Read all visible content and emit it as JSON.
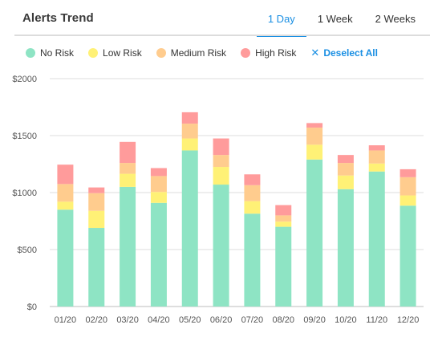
{
  "header": {
    "title": "Alerts Trend",
    "tabs": [
      {
        "label": "1 Day",
        "active": true
      },
      {
        "label": "1 Week",
        "active": false
      },
      {
        "label": "2 Weeks",
        "active": false
      }
    ]
  },
  "legend": {
    "items": [
      {
        "label": "No Risk",
        "color": "#8ee4c4"
      },
      {
        "label": "Low Risk",
        "color": "#fff176"
      },
      {
        "label": "Medium Risk",
        "color": "#ffcc8e"
      },
      {
        "label": "High Risk",
        "color": "#ff9b9b"
      }
    ],
    "deselect_label": "Deselect All",
    "deselect_icon": "close-icon"
  },
  "chart_data": {
    "type": "bar",
    "stacked": true,
    "categories": [
      "01/20",
      "02/20",
      "03/20",
      "04/20",
      "05/20",
      "06/20",
      "07/20",
      "08/20",
      "09/20",
      "10/20",
      "11/20",
      "12/20"
    ],
    "series": [
      {
        "name": "No Risk",
        "color": "#8ee4c4",
        "values": [
          850,
          690,
          1050,
          910,
          1370,
          1070,
          815,
          700,
          1290,
          1030,
          1185,
          885
        ]
      },
      {
        "name": "Low Risk",
        "color": "#fff176",
        "values": [
          70,
          150,
          115,
          95,
          105,
          155,
          110,
          45,
          130,
          120,
          70,
          90
        ]
      },
      {
        "name": "Medium Risk",
        "color": "#ffcc8e",
        "values": [
          155,
          155,
          95,
          140,
          130,
          105,
          140,
          55,
          150,
          110,
          115,
          160
        ]
      },
      {
        "name": "High Risk",
        "color": "#ff9b9b",
        "values": [
          170,
          50,
          185,
          70,
          100,
          145,
          95,
          90,
          40,
          70,
          45,
          70
        ]
      }
    ],
    "yticks": [
      "$0",
      "$500",
      "$1000",
      "$1500",
      "$2000"
    ],
    "ytick_values": [
      0,
      500,
      1000,
      1500,
      2000
    ],
    "ylim": [
      0,
      2000
    ],
    "grid": true
  }
}
